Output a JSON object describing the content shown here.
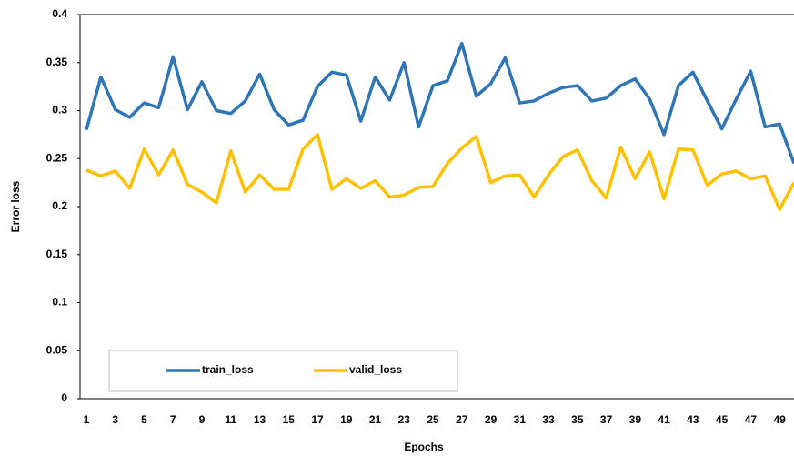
{
  "chart_data": {
    "type": "line",
    "x_label": "Epochs",
    "y_label": "Error loss",
    "categories": [
      "1",
      null,
      "3",
      null,
      "5",
      null,
      "7",
      null,
      "9",
      null,
      "11",
      null,
      "13",
      null,
      "15",
      null,
      "17",
      null,
      "19",
      null,
      "21",
      null,
      "23",
      null,
      "25",
      null,
      "27",
      null,
      "29",
      null,
      "31",
      null,
      "33",
      null,
      "35",
      null,
      "37",
      null,
      "39",
      null,
      "41",
      null,
      "43",
      null,
      "45",
      null,
      "47",
      null,
      "49",
      null
    ],
    "series": [
      {
        "name": "train_loss",
        "color": "#2e75b6",
        "values": [
          0.28,
          0.335,
          0.301,
          0.293,
          0.308,
          0.303,
          0.356,
          0.301,
          0.33,
          0.3,
          0.297,
          0.31,
          0.338,
          0.301,
          0.285,
          0.29,
          0.325,
          0.34,
          0.337,
          0.289,
          0.335,
          0.311,
          0.35,
          0.283,
          0.326,
          0.331,
          0.37,
          0.315,
          0.328,
          0.355,
          0.308,
          0.31,
          0.318,
          0.324,
          0.326,
          0.31,
          0.313,
          0.326,
          0.333,
          0.312,
          0.275,
          0.326,
          0.34,
          0.31,
          0.281,
          0.312,
          0.341,
          0.283,
          0.286,
          0.245
        ]
      },
      {
        "name": "valid_loss",
        "color": "#ffc000",
        "values": [
          0.238,
          0.232,
          0.237,
          0.219,
          0.26,
          0.233,
          0.259,
          0.223,
          0.215,
          0.204,
          0.258,
          0.215,
          0.233,
          0.218,
          0.218,
          0.26,
          0.275,
          0.218,
          0.229,
          0.219,
          0.227,
          0.21,
          0.212,
          0.22,
          0.221,
          0.245,
          0.261,
          0.273,
          0.225,
          0.232,
          0.233,
          0.21,
          0.233,
          0.252,
          0.259,
          0.227,
          0.209,
          0.262,
          0.229,
          0.257,
          0.208,
          0.26,
          0.259,
          0.222,
          0.234,
          0.237,
          0.229,
          0.232,
          0.197,
          0.225
        ]
      }
    ],
    "ylim": [
      0,
      0.4
    ],
    "yticks": [
      0,
      0.05,
      0.1,
      0.15,
      0.2,
      0.25,
      0.3,
      0.35,
      0.4
    ],
    "grid": false,
    "legend": "lower left"
  }
}
